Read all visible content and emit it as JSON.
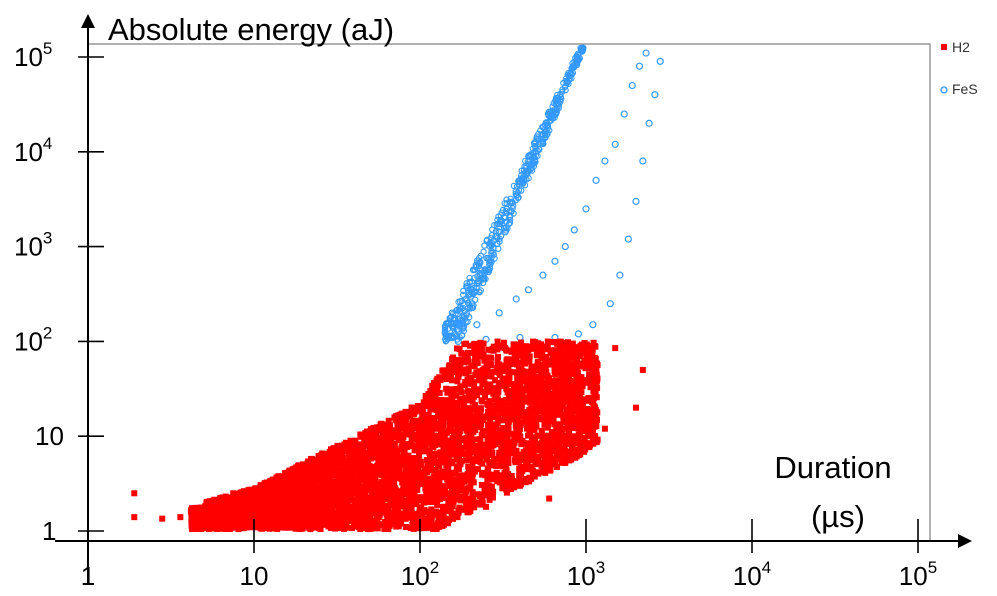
{
  "chart_data": {
    "type": "scatter",
    "title": "",
    "ylabel": "Absolute energy (aJ)",
    "xlabel_line1": "Duration",
    "xlabel_line2": "(µs)",
    "x_scale": "log",
    "y_scale": "log",
    "xlim": [
      1,
      100000
    ],
    "ylim": [
      1,
      100000
    ],
    "grid": false,
    "legend_position": "top-right",
    "x_ticks": [
      {
        "value": 1,
        "base": "1",
        "exp": ""
      },
      {
        "value": 10,
        "base": "10",
        "exp": ""
      },
      {
        "value": 100,
        "base": "10",
        "exp": "2"
      },
      {
        "value": 1000,
        "base": "10",
        "exp": "3"
      },
      {
        "value": 10000,
        "base": "10",
        "exp": "4"
      },
      {
        "value": 100000,
        "base": "10",
        "exp": "5"
      }
    ],
    "y_ticks": [
      {
        "value": 1,
        "base": "1",
        "exp": ""
      },
      {
        "value": 10,
        "base": "10",
        "exp": ""
      },
      {
        "value": 100,
        "base": "10",
        "exp": "2"
      },
      {
        "value": 1000,
        "base": "10",
        "exp": "3"
      },
      {
        "value": 10000,
        "base": "10",
        "exp": "4"
      },
      {
        "value": 100000,
        "base": "10",
        "exp": "5"
      }
    ],
    "series": [
      {
        "name": "H2",
        "marker": "filled-square",
        "color": "#ff0000",
        "points": [
          [
            1.9,
            1.4
          ],
          [
            1.9,
            2.5
          ],
          [
            2.8,
            1.35
          ],
          [
            3.6,
            1.4
          ],
          [
            4.2,
            1.3
          ],
          [
            4.8,
            1.5
          ],
          [
            5.5,
            1.8
          ],
          [
            6.5,
            2.2
          ],
          [
            7.5,
            2.5
          ],
          [
            8.5,
            2.1
          ],
          [
            10,
            2.6
          ],
          [
            12,
            3.0
          ],
          [
            15,
            2.8
          ],
          [
            18,
            3.6
          ],
          [
            22,
            4.0
          ],
          [
            28,
            5.0
          ],
          [
            35,
            5.5
          ],
          [
            45,
            7.0
          ],
          [
            60,
            9.0
          ],
          [
            80,
            12
          ],
          [
            100,
            20
          ],
          [
            120,
            30
          ],
          [
            150,
            55
          ],
          [
            200,
            90
          ],
          [
            300,
            90
          ],
          [
            500,
            85
          ],
          [
            700,
            80
          ],
          [
            1000,
            90
          ],
          [
            1500,
            85
          ],
          [
            2200,
            50
          ],
          [
            2000,
            20
          ],
          [
            1300,
            12
          ],
          [
            1000,
            8
          ],
          [
            600,
            2.2
          ],
          [
            400,
            3.0
          ],
          [
            250,
            1.8
          ],
          [
            180,
            1.7
          ],
          [
            120,
            1.6
          ],
          [
            80,
            1.5
          ],
          [
            50,
            1.3
          ],
          [
            30,
            1.2
          ],
          [
            15,
            1.1
          ]
        ]
      },
      {
        "name": "FeS",
        "marker": "open-circle",
        "color": "#3399ff",
        "points": [
          [
            170,
            100
          ],
          [
            220,
            150
          ],
          [
            300,
            200
          ],
          [
            380,
            280
          ],
          [
            450,
            350
          ],
          [
            550,
            500
          ],
          [
            650,
            700
          ],
          [
            750,
            1000
          ],
          [
            850,
            1500
          ],
          [
            1000,
            2500
          ],
          [
            1150,
            5000
          ],
          [
            1300,
            8000
          ],
          [
            1500,
            12000
          ],
          [
            1700,
            25000
          ],
          [
            1900,
            50000
          ],
          [
            2100,
            80000
          ],
          [
            2300,
            110000
          ],
          [
            2800,
            90000
          ],
          [
            2600,
            40000
          ],
          [
            2400,
            20000
          ],
          [
            2200,
            8000
          ],
          [
            2000,
            3000
          ],
          [
            1800,
            1200
          ],
          [
            1600,
            500
          ],
          [
            1400,
            250
          ],
          [
            1100,
            150
          ],
          [
            900,
            120
          ],
          [
            650,
            110
          ],
          [
            400,
            110
          ],
          [
            250,
            105
          ]
        ]
      }
    ]
  }
}
